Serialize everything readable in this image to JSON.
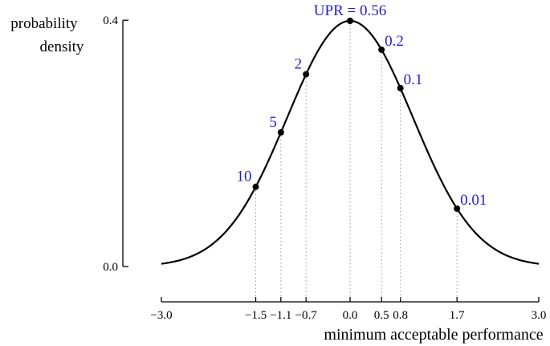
{
  "chart_data": {
    "type": "line",
    "xlabel": "minimum acceptable performance",
    "ylabel_lines": [
      "probability",
      "density"
    ],
    "xlim": [
      -3.0,
      3.0
    ],
    "ylim": [
      0.0,
      0.4
    ],
    "x_ticks": [
      {
        "value": -3.0,
        "label": "−3.0"
      },
      {
        "value": -1.5,
        "label": "−1.5"
      },
      {
        "value": -1.1,
        "label": "−1.1"
      },
      {
        "value": -0.7,
        "label": "−0.7"
      },
      {
        "value": 0.0,
        "label": "0.0"
      },
      {
        "value": 0.5,
        "label": "0.5"
      },
      {
        "value": 0.8,
        "label": "0.8"
      },
      {
        "value": 1.7,
        "label": "1.7"
      },
      {
        "value": 3.0,
        "label": "3.0"
      }
    ],
    "y_ticks": [
      {
        "value": 0.0,
        "label": "0.0"
      },
      {
        "value": 0.4,
        "label": "0.4"
      }
    ],
    "curve": {
      "distribution": "standard normal",
      "mean": 0.0,
      "sd": 1.0
    },
    "grid": false,
    "points": [
      {
        "x": -1.5,
        "label": "10"
      },
      {
        "x": -1.1,
        "label": "5"
      },
      {
        "x": -0.7,
        "label": "2"
      },
      {
        "x": 0.0,
        "label": "UPR = 0.56"
      },
      {
        "x": 0.5,
        "label": "0.2"
      },
      {
        "x": 0.8,
        "label": "0.1"
      },
      {
        "x": 1.7,
        "label": "0.01"
      }
    ],
    "colors": {
      "curve": "#000000",
      "annotation": "#1f1fd1",
      "dropline": "#9a9a9a"
    }
  }
}
